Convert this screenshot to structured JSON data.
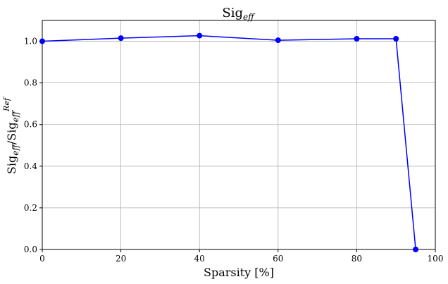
{
  "chart_data": {
    "type": "line",
    "title": {
      "base": "Sig",
      "sub": "eff"
    },
    "xlabel": "Sparsity [%]",
    "ylabel": {
      "base1": "Sig",
      "sub1": "eff",
      "slash": "/",
      "base2": "Sig",
      "sub2": "eff",
      "sup2": "Ref"
    },
    "xlim": [
      0,
      100
    ],
    "ylim": [
      0,
      1.1
    ],
    "xticks": [
      0,
      20,
      40,
      60,
      80,
      100
    ],
    "yticks": [
      0.0,
      0.2,
      0.4,
      0.6,
      0.8,
      1.0
    ],
    "xtick_labels": [
      "0",
      "20",
      "40",
      "60",
      "80",
      "100"
    ],
    "ytick_labels": [
      "0.0",
      "0.2",
      "0.4",
      "0.6",
      "0.8",
      "1.0"
    ],
    "grid": true,
    "series": [
      {
        "color": "#0000ff",
        "marker": "circle",
        "x": [
          0,
          20,
          40,
          60,
          80,
          90,
          95
        ],
        "y": [
          1.0,
          1.015,
          1.027,
          1.005,
          1.012,
          1.012,
          0.0
        ]
      }
    ]
  }
}
